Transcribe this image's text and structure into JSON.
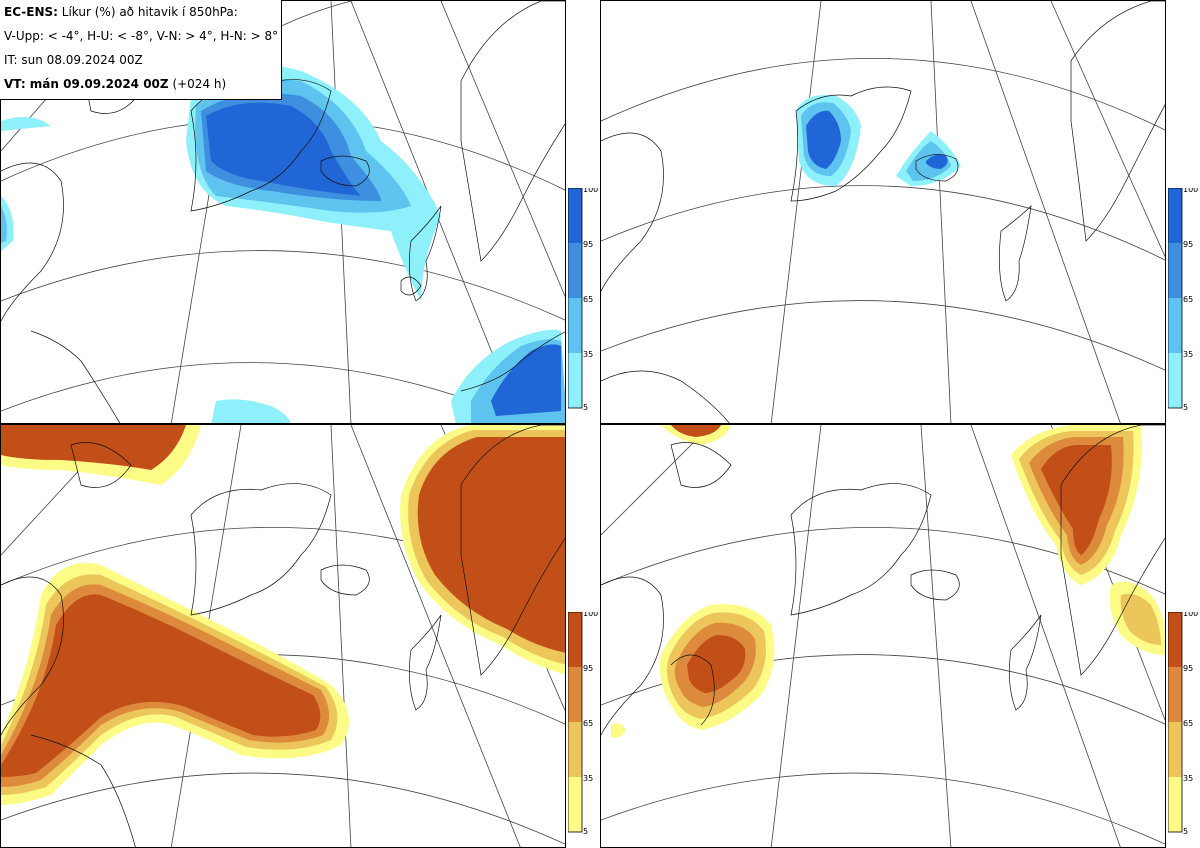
{
  "legend": {
    "model_label": "EC-ENS:",
    "title": "Líkur (%) að hitavik í 850hPa:",
    "thresholds": "V-Upp: < -4°, H-U: < -8°, V-N: > 4°, H-N: > 8°",
    "initial_time": "IT: sun 08.09.2024 00Z",
    "valid_label": "VT: mán 09.09.2024 00Z",
    "valid_offset": "(+024 h)"
  },
  "panels": [
    {
      "key": "tl",
      "name": "V-Upp",
      "variable": "probability temperature anomaly < -4°"
    },
    {
      "key": "tr",
      "name": "H-U",
      "variable": "probability temperature anomaly < -8°"
    },
    {
      "key": "bl",
      "name": "V-N",
      "variable": "probability temperature anomaly > 4°"
    },
    {
      "key": "br",
      "name": "H-N",
      "variable": "probability temperature anomaly > 8°"
    }
  ],
  "colorbar_cold": {
    "ticks": [
      "100",
      "95",
      "65",
      "35",
      "5"
    ],
    "colors": [
      "#2166d6",
      "#3e8fe0",
      "#5ec3ee",
      "#8ef0fa"
    ]
  },
  "colorbar_warm": {
    "ticks": [
      "100",
      "95",
      "65",
      "35",
      "5"
    ],
    "colors": [
      "#c24e18",
      "#dd8a3c",
      "#ecc65a",
      "#fbfb86"
    ]
  }
}
